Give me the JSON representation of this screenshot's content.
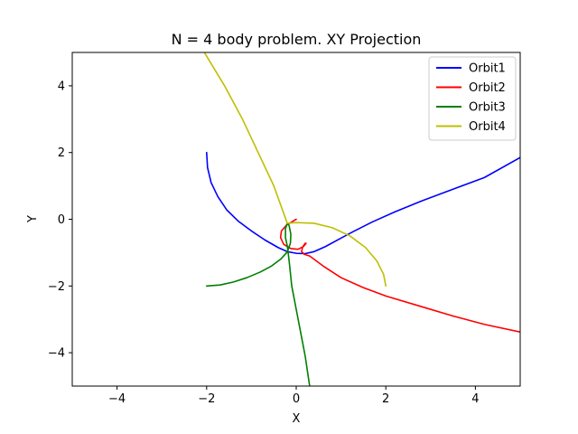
{
  "chart_data": {
    "type": "line",
    "title": "N = 4 body problem. XY Projection",
    "xlabel": "X",
    "ylabel": "Y",
    "xlim": [
      -5,
      5
    ],
    "ylim": [
      -5,
      5
    ],
    "xticks": [
      -4,
      -2,
      0,
      2,
      4
    ],
    "yticks": [
      -4,
      -2,
      0,
      2,
      4
    ],
    "tick_labels_x": [
      "−4",
      "−2",
      "0",
      "2",
      "4"
    ],
    "tick_labels_y": [
      "−4",
      "−2",
      "0",
      "2",
      "4"
    ],
    "grid": false,
    "legend_position": "top-right",
    "series": [
      {
        "name": "Orbit1",
        "color": "#0000ff",
        "points": [
          [
            -2.0,
            2.0
          ],
          [
            -1.98,
            1.55
          ],
          [
            -1.9,
            1.1
          ],
          [
            -1.75,
            0.68
          ],
          [
            -1.55,
            0.28
          ],
          [
            -1.3,
            -0.05
          ],
          [
            -1.0,
            -0.35
          ],
          [
            -0.7,
            -0.62
          ],
          [
            -0.4,
            -0.85
          ],
          [
            -0.2,
            -0.97
          ],
          [
            0.0,
            -1.02
          ],
          [
            0.2,
            -1.03
          ],
          [
            0.4,
            -0.97
          ],
          [
            0.65,
            -0.82
          ],
          [
            0.95,
            -0.6
          ],
          [
            1.3,
            -0.35
          ],
          [
            1.7,
            -0.08
          ],
          [
            2.2,
            0.22
          ],
          [
            2.8,
            0.55
          ],
          [
            3.5,
            0.9
          ],
          [
            4.2,
            1.25
          ],
          [
            5.0,
            1.85
          ]
        ]
      },
      {
        "name": "Orbit2",
        "color": "#ff0000",
        "points": [
          [
            0.0,
            0.0
          ],
          [
            -0.1,
            -0.08
          ],
          [
            -0.22,
            -0.18
          ],
          [
            -0.33,
            -0.35
          ],
          [
            -0.35,
            -0.55
          ],
          [
            -0.28,
            -0.75
          ],
          [
            -0.12,
            -0.88
          ],
          [
            0.04,
            -0.9
          ],
          [
            0.16,
            -0.82
          ],
          [
            0.22,
            -0.72
          ],
          [
            0.2,
            -0.72
          ],
          [
            0.14,
            -0.84
          ],
          [
            0.12,
            -0.97
          ],
          [
            0.18,
            -1.05
          ],
          [
            0.3,
            -1.1
          ],
          [
            0.6,
            -1.4
          ],
          [
            1.0,
            -1.75
          ],
          [
            1.5,
            -2.05
          ],
          [
            2.0,
            -2.3
          ],
          [
            2.8,
            -2.62
          ],
          [
            3.5,
            -2.9
          ],
          [
            4.2,
            -3.15
          ],
          [
            5.0,
            -3.38
          ]
        ]
      },
      {
        "name": "Orbit3",
        "color": "#008000",
        "points": [
          [
            -2.0,
            -2.0
          ],
          [
            -1.7,
            -1.97
          ],
          [
            -1.4,
            -1.88
          ],
          [
            -1.1,
            -1.75
          ],
          [
            -0.8,
            -1.58
          ],
          [
            -0.55,
            -1.4
          ],
          [
            -0.35,
            -1.2
          ],
          [
            -0.2,
            -0.98
          ],
          [
            -0.13,
            -0.72
          ],
          [
            -0.12,
            -0.45
          ],
          [
            -0.16,
            -0.18
          ],
          [
            -0.2,
            -0.12
          ],
          [
            -0.24,
            -0.28
          ],
          [
            -0.24,
            -0.55
          ],
          [
            -0.2,
            -0.8
          ],
          [
            -0.18,
            -1.0
          ],
          [
            -0.15,
            -1.35
          ],
          [
            -0.1,
            -2.0
          ],
          [
            0.0,
            -2.7
          ],
          [
            0.1,
            -3.4
          ],
          [
            0.2,
            -4.1
          ],
          [
            0.3,
            -5.0
          ]
        ]
      },
      {
        "name": "Orbit4",
        "color": "#bfbf00",
        "points": [
          [
            -2.05,
            5.0
          ],
          [
            -1.6,
            4.0
          ],
          [
            -1.2,
            3.0
          ],
          [
            -0.85,
            2.0
          ],
          [
            -0.5,
            1.0
          ],
          [
            -0.2,
            -0.12
          ],
          [
            0.0,
            -0.1
          ],
          [
            0.4,
            -0.12
          ],
          [
            0.8,
            -0.25
          ],
          [
            1.2,
            -0.5
          ],
          [
            1.55,
            -0.85
          ],
          [
            1.8,
            -1.25
          ],
          [
            1.95,
            -1.65
          ],
          [
            2.0,
            -2.0
          ]
        ]
      }
    ]
  }
}
